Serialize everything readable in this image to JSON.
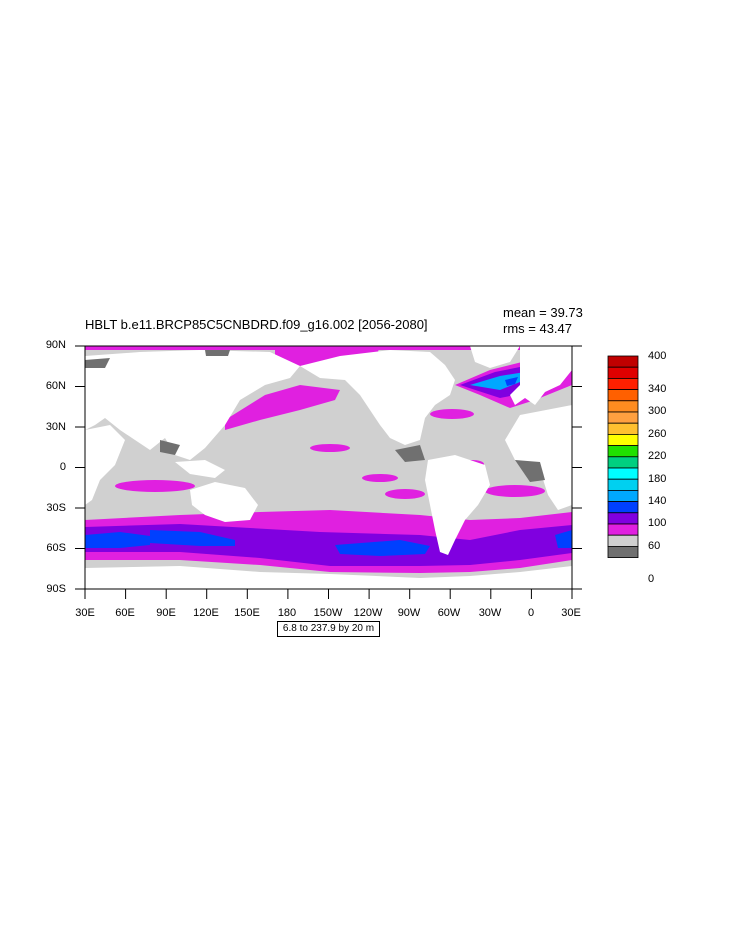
{
  "title": "HBLT b.e11.BRCP85C5CNBDRD.f09_g16.002 [2056-2080]",
  "stats": {
    "mean": "mean = 39.73",
    "rms": "rms = 43.47"
  },
  "contour_info": "6.8 to 237.9 by 20 m",
  "axes": {
    "y_ticks": [
      "90N",
      "60N",
      "30N",
      "0",
      "30S",
      "60S",
      "90S"
    ],
    "x_ticks": [
      "30E",
      "60E",
      "90E",
      "120E",
      "150E",
      "180",
      "150W",
      "120W",
      "90W",
      "60W",
      "30W",
      "0",
      "30E"
    ]
  },
  "colorbar": {
    "colors": [
      "#c00000",
      "#e00000",
      "#ff2000",
      "#ff6000",
      "#ff8c20",
      "#ffa040",
      "#ffc030",
      "#ffff00",
      "#20e000",
      "#00d080",
      "#00ffff",
      "#00d0f0",
      "#00a8ff",
      "#0040ff",
      "#8000e0",
      "#e020e0",
      "#d0d0d0",
      "#707070"
    ],
    "labels": [
      "400",
      "340",
      "300",
      "260",
      "220",
      "180",
      "140",
      "100",
      "60",
      "0"
    ]
  },
  "map_colors": {
    "land": "#ffffff",
    "low": "#d0d0d0",
    "lowest": "#707070",
    "mid": "#e020e0",
    "high": "#8000e0",
    "higher": "#0040ff",
    "deep": "#00a8ff"
  }
}
